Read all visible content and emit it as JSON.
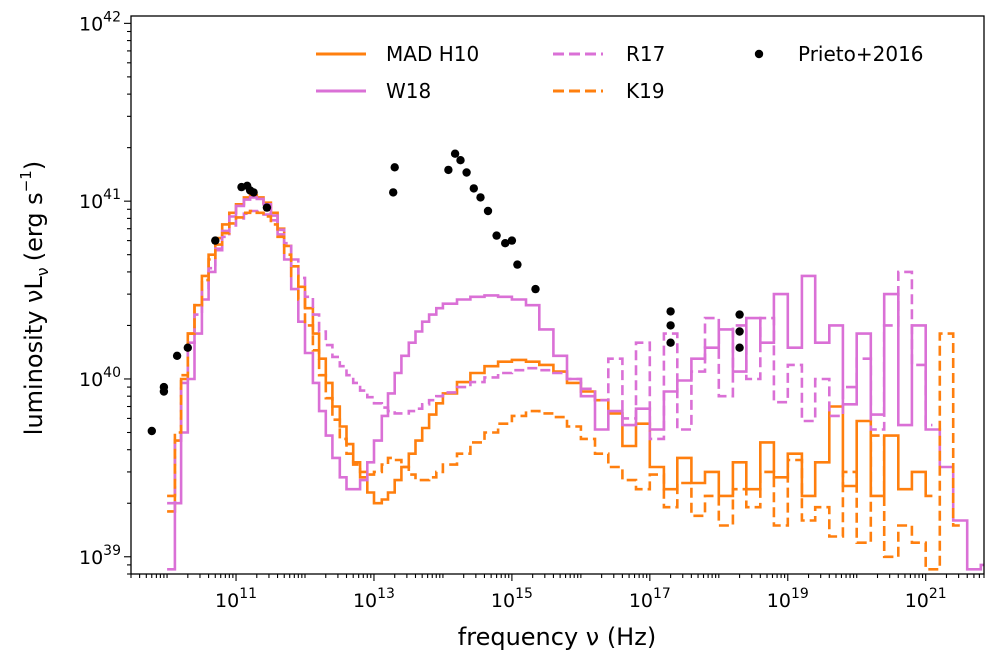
{
  "chart_data": {
    "type": "line",
    "xlabel": "frequency ν (Hz)",
    "ylabel": "luminosity νL",
    "ylabel_sub": "ν",
    "ylabel_units": "(erg s",
    "ylabel_units_sup": "−1",
    "ylabel_units_end": ")",
    "x_scale": "log",
    "y_scale": "log",
    "xlim": [
      3000000000.0,
      7e+21
    ],
    "ylim": [
      8e+38,
      1.1e+42
    ],
    "x_ticks": [
      {
        "exp": 11,
        "base": "10",
        "sup": "11"
      },
      {
        "exp": 13,
        "base": "10",
        "sup": "13"
      },
      {
        "exp": 15,
        "base": "10",
        "sup": "15"
      },
      {
        "exp": 17,
        "base": "10",
        "sup": "17"
      },
      {
        "exp": 19,
        "base": "10",
        "sup": "19"
      },
      {
        "exp": 21,
        "base": "10",
        "sup": "21"
      }
    ],
    "y_ticks": [
      {
        "exp": 39,
        "base": "10",
        "sup": "39"
      },
      {
        "exp": 40,
        "base": "10",
        "sup": "40"
      },
      {
        "exp": 41,
        "base": "10",
        "sup": "41"
      },
      {
        "exp": 42,
        "base": "10",
        "sup": "42"
      }
    ],
    "grid": false,
    "legend_position": "top",
    "series": [
      {
        "name": "MAD H10",
        "color": "#ff7f0e",
        "style": "solid",
        "x": [
          10000000000.0,
          13000000000.0,
          16000000000.0,
          20000000000.0,
          25000000000.0,
          32000000000.0,
          40000000000.0,
          50000000000.0,
          63000000000.0,
          80000000000.0,
          100000000000.0,
          130000000000.0,
          160000000000.0,
          200000000000.0,
          250000000000.0,
          320000000000.0,
          400000000000.0,
          500000000000.0,
          630000000000.0,
          800000000000.0,
          1000000000000.0,
          1300000000000.0,
          1600000000000.0,
          2000000000000.0,
          2500000000000.0,
          3200000000000.0,
          4000000000000.0,
          5000000000000.0,
          6300000000000.0,
          8000000000000.0,
          10000000000000.0,
          13000000000000.0,
          16000000000000.0,
          20000000000000.0,
          25000000000000.0,
          32000000000000.0,
          40000000000000.0,
          50000000000000.0,
          63000000000000.0,
          80000000000000.0,
          100000000000000.0,
          160000000000000.0,
          250000000000000.0,
          400000000000000.0,
          630000000000000.0,
          1000000000000000.0,
          1600000000000000.0,
          2500000000000000.0,
          4000000000000000.0,
          6300000000000000.0,
          1e+16,
          1.6e+16,
          2.5e+16,
          4e+16,
          6.3e+16,
          1e+17,
          1.6e+17,
          2.5e+17,
          4e+17,
          6.3e+17,
          1e+18,
          1.6e+18,
          2.5e+18,
          4e+18,
          6.3e+18,
          1e+19,
          1.6e+19,
          2.5e+19,
          4e+19,
          6.3e+19,
          1e+20,
          1.6e+20,
          2.5e+20,
          4e+20,
          6.3e+20,
          1e+21
        ],
        "y": [
          1.8e+39,
          4.5e+39,
          1e+40,
          1.8e+40,
          2.6e+40,
          3.8e+40,
          5e+40,
          6.2e+40,
          7.4e+40,
          8.6e+40,
          9.6e+40,
          1.05e+41,
          1.08e+41,
          1.05e+41,
          9.8e+40,
          8.6e+40,
          7e+40,
          5.6e+40,
          4.3e+40,
          3.3e+40,
          2.5e+40,
          1.8e+40,
          1.3e+40,
          9.5e+39,
          7e+39,
          5.4e+39,
          4.3e+39,
          3.4e+39,
          2.8e+39,
          2.3e+39,
          2e+39,
          2.1e+39,
          2.3e+39,
          2.7e+39,
          3.2e+39,
          3.8e+39,
          4.5e+39,
          5.3e+39,
          6.3e+39,
          7.3e+39,
          8.3e+39,
          9.6e+39,
          1.08e+40,
          1.18e+40,
          1.25e+40,
          1.28e+40,
          1.25e+40,
          1.2e+40,
          1.1e+40,
          9.5e+39,
          8.5e+39,
          7.6e+39,
          6.4e+39,
          4.2e+39,
          5.6e+39,
          3.2e+39,
          2.4e+39,
          3.6e+39,
          2.6e+39,
          3e+39,
          2.2e+39,
          3.4e+39,
          2.4e+39,
          4.4e+39,
          2.8e+39,
          3.8e+39,
          2.2e+39,
          3.4e+39,
          7e+39,
          2.5e+39,
          5.8e+39,
          2.2e+39,
          4.8e+39,
          2.4e+39,
          3e+39,
          2.2e+39
        ]
      },
      {
        "name": "W18",
        "color": "#da70d6",
        "style": "solid",
        "x": [
          10000000000.0,
          13000000000.0,
          16000000000.0,
          20000000000.0,
          25000000000.0,
          32000000000.0,
          40000000000.0,
          50000000000.0,
          63000000000.0,
          80000000000.0,
          100000000000.0,
          130000000000.0,
          160000000000.0,
          200000000000.0,
          250000000000.0,
          320000000000.0,
          400000000000.0,
          500000000000.0,
          630000000000.0,
          800000000000.0,
          1000000000000.0,
          1300000000000.0,
          1600000000000.0,
          2000000000000.0,
          2500000000000.0,
          3200000000000.0,
          4000000000000.0,
          5000000000000.0,
          6300000000000.0,
          8000000000000.0,
          10000000000000.0,
          13000000000000.0,
          16000000000000.0,
          20000000000000.0,
          25000000000000.0,
          32000000000000.0,
          40000000000000.0,
          50000000000000.0,
          63000000000000.0,
          80000000000000.0,
          100000000000000.0,
          160000000000000.0,
          250000000000000.0,
          400000000000000.0,
          630000000000000.0,
          1000000000000000.0,
          1600000000000000.0,
          2500000000000000.0,
          4000000000000000.0,
          6300000000000000.0,
          1e+16,
          1.6e+16,
          2.5e+16,
          4e+16,
          6.3e+16,
          1e+17,
          1.6e+17,
          2.5e+17,
          4e+17,
          6.3e+17,
          1e+18,
          1.6e+18,
          2.5e+18,
          4e+18,
          6.3e+18,
          1e+19,
          1.6e+19,
          2.5e+19,
          4e+19,
          6.3e+19,
          1e+20,
          1.6e+20,
          2.5e+20,
          4e+20,
          6.3e+20,
          1e+21,
          1.6e+21,
          2.5e+21,
          4e+21,
          6.3e+21
        ],
        "y": [
          8.5e+38,
          2e+39,
          5e+39,
          1e+40,
          1.8e+40,
          2.8e+40,
          4e+40,
          5.4e+40,
          6.8e+40,
          8.2e+40,
          9.4e+40,
          1.02e+41,
          1.05e+41,
          1.03e+41,
          9.6e+40,
          8.3e+40,
          6.5e+40,
          4.7e+40,
          3.2e+40,
          2.1e+40,
          1.4e+40,
          9.5e+39,
          6.6e+39,
          4.8e+39,
          3.6e+39,
          2.8e+39,
          2.4e+39,
          2.4e+39,
          2.7e+39,
          3.4e+39,
          4.5e+39,
          6.2e+39,
          8.3e+39,
          1.08e+40,
          1.35e+40,
          1.6e+40,
          1.85e+40,
          2.1e+40,
          2.3e+40,
          2.5e+40,
          2.65e+40,
          2.8e+40,
          2.9e+40,
          2.95e+40,
          2.9e+40,
          2.8e+40,
          2.6e+40,
          1.9e+40,
          1.35e+40,
          1e+40,
          8e+39,
          5.2e+39,
          6.6e+39,
          5.5e+39,
          6.8e+39,
          5.2e+39,
          8.5e+39,
          9.8e+39,
          1.3e+40,
          1.5e+40,
          1.9e+40,
          1.1e+40,
          2.2e+40,
          1.6e+40,
          3e+40,
          1.5e+40,
          3.8e+40,
          1.6e+40,
          2e+40,
          7.2e+39,
          1.8e+40,
          6.3e+39,
          3e+40,
          5.5e+39,
          2e+40,
          5.2e+39,
          3.2e+39,
          1.6e+39,
          8.5e+38,
          9e+38
        ]
      },
      {
        "name": "R17",
        "color": "#da70d6",
        "style": "dashed",
        "x": [
          10000000000.0,
          13000000000.0,
          16000000000.0,
          20000000000.0,
          25000000000.0,
          32000000000.0,
          40000000000.0,
          50000000000.0,
          63000000000.0,
          80000000000.0,
          100000000000.0,
          130000000000.0,
          160000000000.0,
          200000000000.0,
          250000000000.0,
          320000000000.0,
          400000000000.0,
          500000000000.0,
          630000000000.0,
          800000000000.0,
          1000000000000.0,
          1300000000000.0,
          1600000000000.0,
          2000000000000.0,
          2500000000000.0,
          3200000000000.0,
          4000000000000.0,
          5000000000000.0,
          6300000000000.0,
          8000000000000.0,
          10000000000000.0,
          13000000000000.0,
          16000000000000.0,
          20000000000000.0,
          25000000000000.0,
          32000000000000.0,
          40000000000000.0,
          50000000000000.0,
          63000000000000.0,
          80000000000000.0,
          100000000000000.0,
          160000000000000.0,
          250000000000000.0,
          400000000000000.0,
          630000000000000.0,
          1000000000000000.0,
          1600000000000000.0,
          2500000000000000.0,
          4000000000000000.0,
          6300000000000000.0,
          1e+16,
          1.6e+16,
          2.5e+16,
          4e+16,
          6.3e+16,
          1e+17,
          1.6e+17,
          2.5e+17,
          4e+17,
          6.3e+17,
          1e+18,
          1.6e+18,
          2.5e+18,
          4e+18,
          6.3e+18,
          1e+19,
          1.6e+19,
          2.5e+19,
          4e+19,
          6.3e+19,
          1e+20,
          1.6e+20,
          2.5e+20,
          4e+20,
          6.3e+20,
          1e+21
        ],
        "y": [
          2e+39,
          4.5e+39,
          9.5e+39,
          1.6e+40,
          2.3e+40,
          3.2e+40,
          4.2e+40,
          5.3e+40,
          6.3e+40,
          7.3e+40,
          8e+40,
          8.5e+40,
          8.8e+40,
          8.7e+40,
          8.4e+40,
          7.8e+40,
          6.9e+40,
          5.8e+40,
          4.7e+40,
          3.7e+40,
          2.9e+40,
          2.3e+40,
          1.85e+40,
          1.55e+40,
          1.33e+40,
          1.18e+40,
          1.05e+40,
          9.5e+39,
          8.6e+39,
          7.9e+39,
          7.3e+39,
          6.9e+39,
          6.6e+39,
          6.4e+39,
          6.4e+39,
          6.6e+39,
          6.8e+39,
          7.2e+39,
          7.6e+39,
          8e+39,
          8.4e+39,
          9e+39,
          9.6e+39,
          1.02e+40,
          1.08e+40,
          1.12e+40,
          1.15e+40,
          1.12e+40,
          1.08e+40,
          1e+40,
          8.8e+39,
          7.6e+39,
          1.3e+40,
          6e+39,
          1.6e+40,
          4.6e+39,
          1.8e+40,
          5.2e+39,
          1.1e+40,
          2.2e+40,
          8e+39,
          2e+40,
          1e+40,
          2.2e+40,
          7.4e+39,
          1.2e+40,
          5.8e+39,
          1e+40,
          6.2e+39,
          9e+39,
          1.3e+40,
          5.2e+39,
          2e+40,
          4e+40,
          1.2e+40,
          5.5e+39
        ]
      },
      {
        "name": "K19",
        "color": "#ff7f0e",
        "style": "dashed",
        "x": [
          10000000000.0,
          13000000000.0,
          16000000000.0,
          20000000000.0,
          25000000000.0,
          32000000000.0,
          40000000000.0,
          50000000000.0,
          63000000000.0,
          80000000000.0,
          100000000000.0,
          130000000000.0,
          160000000000.0,
          200000000000.0,
          250000000000.0,
          320000000000.0,
          400000000000.0,
          500000000000.0,
          630000000000.0,
          800000000000.0,
          1000000000000.0,
          1300000000000.0,
          1600000000000.0,
          2000000000000.0,
          2500000000000.0,
          3200000000000.0,
          4000000000000.0,
          5000000000000.0,
          6300000000000.0,
          8000000000000.0,
          10000000000000.0,
          13000000000000.0,
          16000000000000.0,
          20000000000000.0,
          25000000000000.0,
          32000000000000.0,
          40000000000000.0,
          50000000000000.0,
          63000000000000.0,
          80000000000000.0,
          100000000000000.0,
          160000000000000.0,
          250000000000000.0,
          400000000000000.0,
          630000000000000.0,
          1000000000000000.0,
          1600000000000000.0,
          2500000000000000.0,
          4000000000000000.0,
          6300000000000000.0,
          1e+16,
          1.6e+16,
          2.5e+16,
          4e+16,
          6.3e+16,
          1e+17,
          1.6e+17,
          2.5e+17,
          4e+17,
          6.3e+17,
          1e+18,
          1.6e+18,
          2.5e+18,
          4e+18,
          6.3e+18,
          1e+19,
          1.6e+19,
          2.5e+19,
          4e+19,
          6.3e+19,
          1e+20,
          1.6e+20,
          2.5e+20,
          4e+20,
          6.3e+20,
          1e+21,
          1.6e+21,
          2.5e+21
        ],
        "y": [
          2.2e+39,
          5e+39,
          1.05e+40,
          1.8e+40,
          2.6e+40,
          3.6e+40,
          4.7e+40,
          5.7e+40,
          6.6e+40,
          7.5e+40,
          8.1e+40,
          8.6e+40,
          8.8e+40,
          8.6e+40,
          8.2e+40,
          7.4e+40,
          6.3e+40,
          5e+40,
          3.8e+40,
          2.8e+40,
          2e+40,
          1.45e+40,
          1.05e+40,
          7.8e+39,
          5.9e+39,
          4.6e+39,
          3.8e+39,
          3.3e+39,
          3e+39,
          2.9e+39,
          3e+39,
          3.3e+39,
          3.6e+39,
          3.5e+39,
          3.2e+39,
          2.9e+39,
          2.7e+39,
          2.7e+39,
          2.8e+39,
          3e+39,
          3.3e+39,
          3.8e+39,
          4.4e+39,
          5e+39,
          5.6e+39,
          6.2e+39,
          6.6e+39,
          6.4e+39,
          6.1e+39,
          5.4e+39,
          4.6e+39,
          3.8e+39,
          3.2e+39,
          2.7e+39,
          2.4e+39,
          2.9e+39,
          1.9e+39,
          2.6e+39,
          1.7e+39,
          2.2e+39,
          1.5e+39,
          2.4e+39,
          1.9e+39,
          3e+39,
          1.5e+39,
          3.5e+39,
          1.6e+39,
          1.9e+39,
          1.3e+39,
          3e+39,
          1.2e+39,
          4.8e+39,
          1e+39,
          1.5e+39,
          1.2e+39,
          8.5e+38,
          1.8e+40,
          1.5e+39
        ]
      }
    ],
    "points": {
      "name": "Prieto+2016",
      "color": "#000000",
      "x": [
        6000000000.0,
        9000000000.0,
        9000000000.0,
        14000000000.0,
        20000000000.0,
        50000000000.0,
        120000000000.0,
        145000000000.0,
        160000000000.0,
        180000000000.0,
        280000000000.0,
        19000000000000.0,
        20000000000000.0,
        120000000000000.0,
        150000000000000.0,
        180000000000000.0,
        220000000000000.0,
        280000000000000.0,
        350000000000000.0,
        450000000000000.0,
        600000000000000.0,
        800000000000000.0,
        1000000000000000.0,
        1200000000000000.0,
        2200000000000000.0,
        2e+17,
        2e+17,
        2e+17,
        2e+18,
        2e+18,
        2e+18
      ],
      "y": [
        5.1e+39,
        8.5e+39,
        9e+39,
        1.35e+40,
        1.5e+40,
        6e+40,
        1.2e+41,
        1.22e+41,
        1.15e+41,
        1.12e+41,
        9.2e+40,
        1.12e+41,
        1.55e+41,
        1.5e+41,
        1.85e+41,
        1.7e+41,
        1.45e+41,
        1.18e+41,
        1.05e+41,
        8.8e+40,
        6.4e+40,
        5.8e+40,
        6e+40,
        4.4e+40,
        3.2e+40,
        2.4e+40,
        2e+40,
        1.6e+40,
        2.3e+40,
        1.85e+40,
        1.5e+40
      ]
    }
  }
}
